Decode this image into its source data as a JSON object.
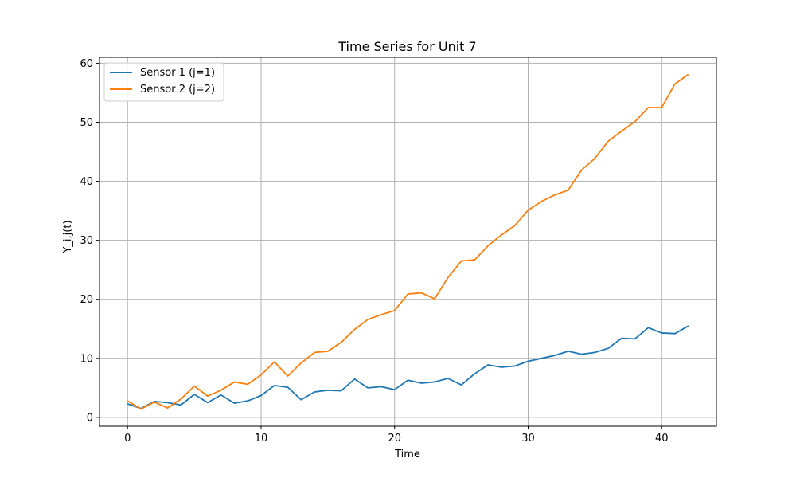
{
  "chart_data": {
    "type": "line",
    "title": "Time Series for Unit 7",
    "xlabel": "Time",
    "ylabel": "Y_i,j(t)",
    "xlim": [
      -2.1,
      44.1
    ],
    "ylim": [
      -1.5,
      61.0
    ],
    "xticks": [
      0,
      10,
      20,
      30,
      40
    ],
    "yticks": [
      0,
      10,
      20,
      30,
      40,
      50,
      60
    ],
    "grid": true,
    "legend_position": "top-left",
    "series": [
      {
        "name": "Sensor 1 (j=1)",
        "color": "#1f77b4",
        "x": [
          0,
          1,
          2,
          3,
          4,
          5,
          6,
          7,
          8,
          9,
          10,
          11,
          12,
          13,
          14,
          15,
          16,
          17,
          18,
          19,
          20,
          21,
          22,
          23,
          24,
          25,
          26,
          27,
          28,
          29,
          30,
          31,
          32,
          33,
          34,
          35,
          36,
          37,
          38,
          39,
          40,
          41,
          42
        ],
        "y": [
          2.3,
          1.5,
          2.7,
          2.5,
          2.1,
          3.9,
          2.5,
          3.8,
          2.4,
          2.8,
          3.7,
          5.4,
          5.1,
          3.0,
          4.3,
          4.6,
          4.5,
          6.5,
          5.0,
          5.2,
          4.7,
          6.3,
          5.8,
          6.0,
          6.6,
          5.5,
          7.4,
          8.9,
          8.5,
          8.7,
          9.5,
          10.0,
          10.5,
          11.2,
          10.7,
          11.0,
          11.7,
          13.4,
          13.3,
          15.2,
          14.3,
          14.2,
          15.5
        ]
      },
      {
        "name": "Sensor 2 (j=2)",
        "color": "#ff7f0e",
        "x": [
          0,
          1,
          2,
          3,
          4,
          5,
          6,
          7,
          8,
          9,
          10,
          11,
          12,
          13,
          14,
          15,
          16,
          17,
          18,
          19,
          20,
          21,
          22,
          23,
          24,
          25,
          26,
          27,
          28,
          29,
          30,
          31,
          32,
          33,
          34,
          35,
          36,
          37,
          38,
          39,
          40,
          41,
          42
        ],
        "y": [
          2.8,
          1.4,
          2.6,
          1.6,
          3.1,
          5.3,
          3.6,
          4.6,
          6.0,
          5.6,
          7.2,
          9.4,
          7.0,
          9.2,
          11.0,
          11.2,
          12.7,
          14.9,
          16.6,
          17.4,
          18.1,
          20.9,
          21.1,
          20.1,
          23.7,
          26.5,
          26.7,
          29.1,
          30.9,
          32.5,
          35.1,
          36.6,
          37.7,
          38.5,
          41.9,
          43.9,
          46.8,
          48.5,
          50.1,
          52.5,
          52.5,
          56.5,
          58.1
        ]
      }
    ]
  }
}
